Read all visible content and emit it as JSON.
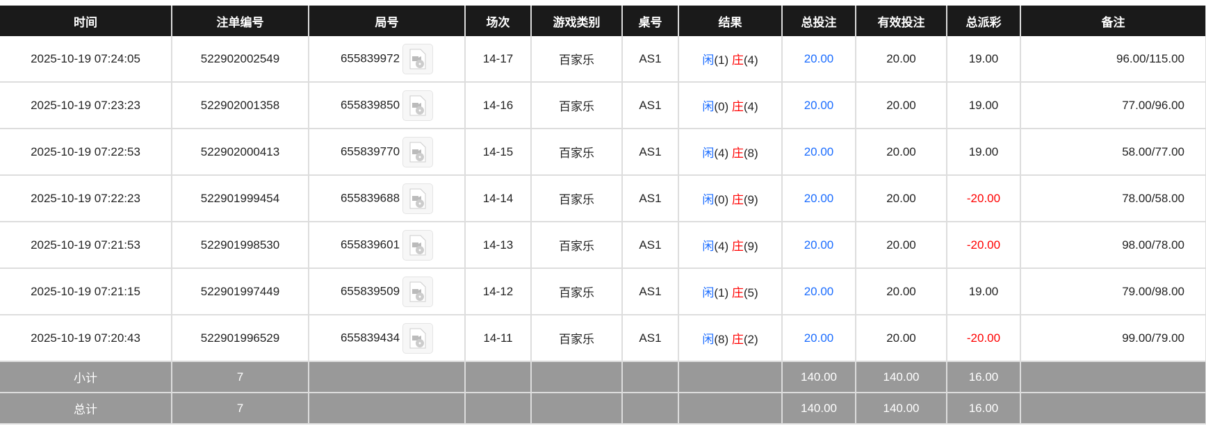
{
  "columns": [
    "时间",
    "注单编号",
    "局号",
    "场次",
    "游戏类别",
    "桌号",
    "结果",
    "总投注",
    "有效投注",
    "总派彩",
    "备注"
  ],
  "rows": [
    {
      "time": "2025-10-19 07:24:05",
      "bet_id": "522902002549",
      "round": "655839972",
      "session": "14-17",
      "game": "百家乐",
      "table": "AS1",
      "player_label": "闲",
      "player": "(1)",
      "banker_label": "庄",
      "banker": "(4)",
      "total_bet": "20.00",
      "valid_bet": "20.00",
      "payout": "19.00",
      "remark": "96.00/115.00"
    },
    {
      "time": "2025-10-19 07:23:23",
      "bet_id": "522902001358",
      "round": "655839850",
      "session": "14-16",
      "game": "百家乐",
      "table": "AS1",
      "player_label": "闲",
      "player": "(0)",
      "banker_label": "庄",
      "banker": "(4)",
      "total_bet": "20.00",
      "valid_bet": "20.00",
      "payout": "19.00",
      "remark": "77.00/96.00"
    },
    {
      "time": "2025-10-19 07:22:53",
      "bet_id": "522902000413",
      "round": "655839770",
      "session": "14-15",
      "game": "百家乐",
      "table": "AS1",
      "player_label": "闲",
      "player": "(4)",
      "banker_label": "庄",
      "banker": "(8)",
      "total_bet": "20.00",
      "valid_bet": "20.00",
      "payout": "19.00",
      "remark": "58.00/77.00"
    },
    {
      "time": "2025-10-19 07:22:23",
      "bet_id": "522901999454",
      "round": "655839688",
      "session": "14-14",
      "game": "百家乐",
      "table": "AS1",
      "player_label": "闲",
      "player": "(0)",
      "banker_label": "庄",
      "banker": "(9)",
      "total_bet": "20.00",
      "valid_bet": "20.00",
      "payout": "-20.00",
      "remark": "78.00/58.00"
    },
    {
      "time": "2025-10-19 07:21:53",
      "bet_id": "522901998530",
      "round": "655839601",
      "session": "14-13",
      "game": "百家乐",
      "table": "AS1",
      "player_label": "闲",
      "player": "(4)",
      "banker_label": "庄",
      "banker": "(9)",
      "total_bet": "20.00",
      "valid_bet": "20.00",
      "payout": "-20.00",
      "remark": "98.00/78.00"
    },
    {
      "time": "2025-10-19 07:21:15",
      "bet_id": "522901997449",
      "round": "655839509",
      "session": "14-12",
      "game": "百家乐",
      "table": "AS1",
      "player_label": "闲",
      "player": "(1)",
      "banker_label": "庄",
      "banker": "(5)",
      "total_bet": "20.00",
      "valid_bet": "20.00",
      "payout": "19.00",
      "remark": "79.00/98.00"
    },
    {
      "time": "2025-10-19 07:20:43",
      "bet_id": "522901996529",
      "round": "655839434",
      "session": "14-11",
      "game": "百家乐",
      "table": "AS1",
      "player_label": "闲",
      "player": "(8)",
      "banker_label": "庄",
      "banker": "(2)",
      "total_bet": "20.00",
      "valid_bet": "20.00",
      "payout": "-20.00",
      "remark": "99.00/79.00"
    }
  ],
  "subtotal": {
    "label": "小计",
    "count": "7",
    "total_bet": "140.00",
    "valid_bet": "140.00",
    "payout": "16.00"
  },
  "total": {
    "label": "总计",
    "count": "7",
    "total_bet": "140.00",
    "valid_bet": "140.00",
    "payout": "16.00"
  },
  "colors": {
    "header_bg": "#1a1a1a",
    "player": "#1a6cff",
    "banker": "#ff0000",
    "negative": "#ff0000",
    "total_bet": "#1a6cff",
    "summary_bg": "#999999"
  },
  "icons": {
    "replay": "video-replay-icon"
  }
}
